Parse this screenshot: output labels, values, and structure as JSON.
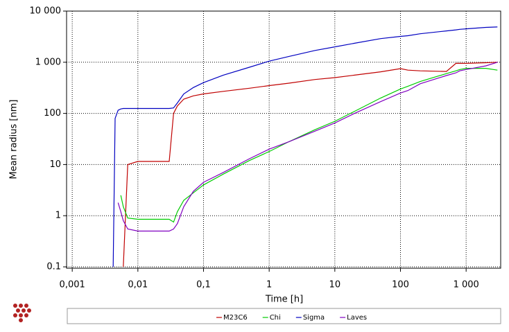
{
  "chart_data": {
    "type": "line",
    "x_label": "Time [h]",
    "y_label": "Mean radius [nm]",
    "xscale": "log",
    "yscale": "log",
    "grid": true,
    "legend": "bottom",
    "xlim": [
      0.00082,
      3360
    ],
    "ylim": [
      0.094,
      10000
    ],
    "xticks": [
      {
        "value": 0.001,
        "label": "0,001"
      },
      {
        "value": 0.01,
        "label": "0,01"
      },
      {
        "value": 0.1,
        "label": "0,1"
      },
      1,
      10,
      100,
      {
        "value": 1000,
        "label": "1 000"
      }
    ],
    "yticks": [
      0.1,
      1,
      10,
      100,
      {
        "value": 1000,
        "label": "1 000"
      },
      {
        "value": 10000,
        "label": "10 000"
      }
    ],
    "x": [
      0.0042,
      0.0045,
      0.005,
      0.0055,
      0.006,
      0.007,
      0.01,
      0.02,
      0.03,
      0.035,
      0.04,
      0.05,
      0.07,
      0.1,
      0.2,
      0.5,
      1,
      2,
      5,
      10,
      20,
      50,
      100,
      130,
      200,
      500,
      700,
      800,
      1000,
      2000,
      3000
    ],
    "series": [
      {
        "name": "M23C6",
        "color": "#c00000",
        "values": [
          null,
          null,
          null,
          null,
          0.1,
          10,
          11.5,
          11.5,
          11.5,
          100,
          140,
          190,
          220,
          240,
          270,
          310,
          350,
          390,
          460,
          500,
          560,
          650,
          750,
          700,
          680,
          660,
          950,
          950,
          950,
          980,
          1000
        ]
      },
      {
        "name": "Chi",
        "color": "#00cc00",
        "values": [
          null,
          null,
          null,
          2.5,
          1.5,
          0.9,
          0.85,
          0.85,
          0.85,
          0.75,
          1.2,
          2,
          2.8,
          4,
          6.5,
          12,
          18,
          28,
          48,
          70,
          110,
          200,
          300,
          340,
          420,
          600,
          680,
          720,
          760,
          760,
          700
        ]
      },
      {
        "name": "Sigma",
        "color": "#0000c0",
        "values": [
          0.1,
          80,
          115,
          122,
          125,
          125,
          125,
          125,
          125,
          128,
          160,
          240,
          320,
          400,
          560,
          800,
          1050,
          1300,
          1700,
          2000,
          2350,
          2900,
          3200,
          3300,
          3600,
          4100,
          4300,
          4400,
          4500,
          4800,
          4900
        ]
      },
      {
        "name": "Laves",
        "color": "#8000c0",
        "values": [
          null,
          null,
          1.8,
          1.2,
          0.8,
          0.55,
          0.5,
          0.5,
          0.5,
          0.55,
          0.7,
          1.5,
          3,
          4.5,
          7,
          13,
          20,
          28,
          45,
          65,
          100,
          170,
          250,
          280,
          380,
          550,
          620,
          680,
          720,
          850,
          1000
        ]
      }
    ]
  }
}
